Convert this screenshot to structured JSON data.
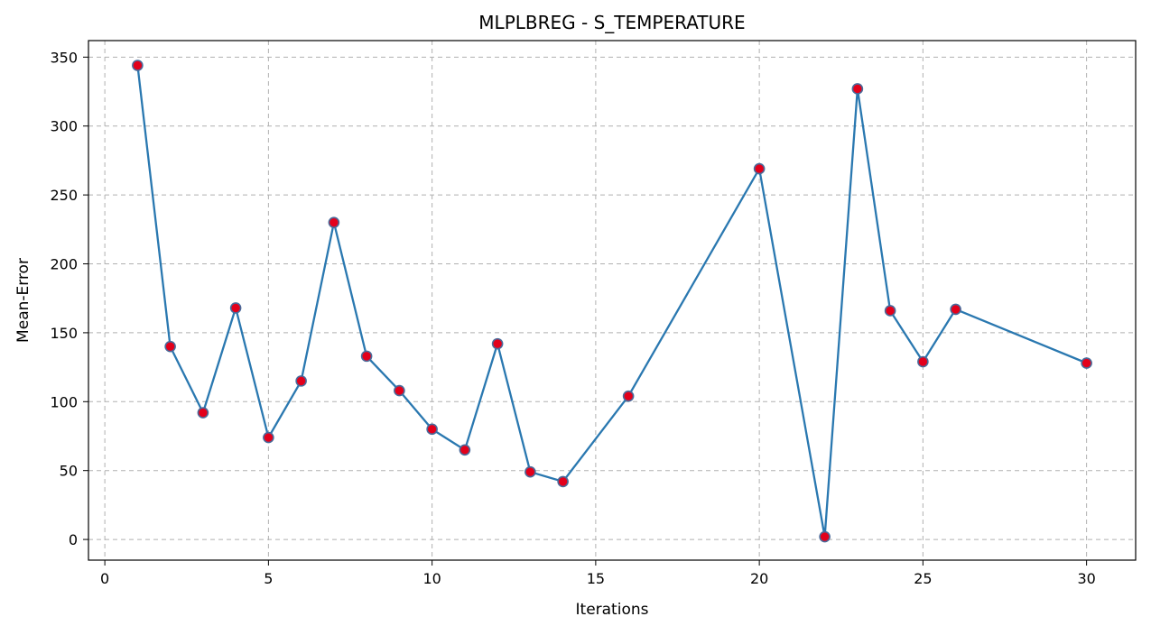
{
  "chart_data": {
    "type": "line",
    "title": "MLPLBREG - S_TEMPERATURE",
    "xlabel": "Iterations",
    "ylabel": "Mean-Error",
    "xlim": [
      -0.5,
      31.5
    ],
    "ylim": [
      -15,
      362
    ],
    "xticks": [
      0,
      5,
      10,
      15,
      20,
      25,
      30
    ],
    "yticks": [
      0,
      50,
      100,
      150,
      200,
      250,
      300,
      350
    ],
    "grid": true,
    "legend": "none",
    "line_color": "#2a78b0",
    "marker_color": "#e3001b",
    "marker_edge_color": "#4a6a9a",
    "series": [
      {
        "x": [
          1,
          2,
          3,
          4,
          5,
          6,
          7,
          8,
          9,
          10,
          11,
          12,
          13,
          14,
          16,
          20,
          22,
          23,
          24,
          25,
          26,
          30
        ],
        "y": [
          344,
          140,
          92,
          168,
          74,
          115,
          230,
          133,
          108,
          80,
          65,
          142,
          49,
          42,
          104,
          269,
          2,
          327,
          166,
          129,
          167,
          128
        ]
      }
    ]
  }
}
